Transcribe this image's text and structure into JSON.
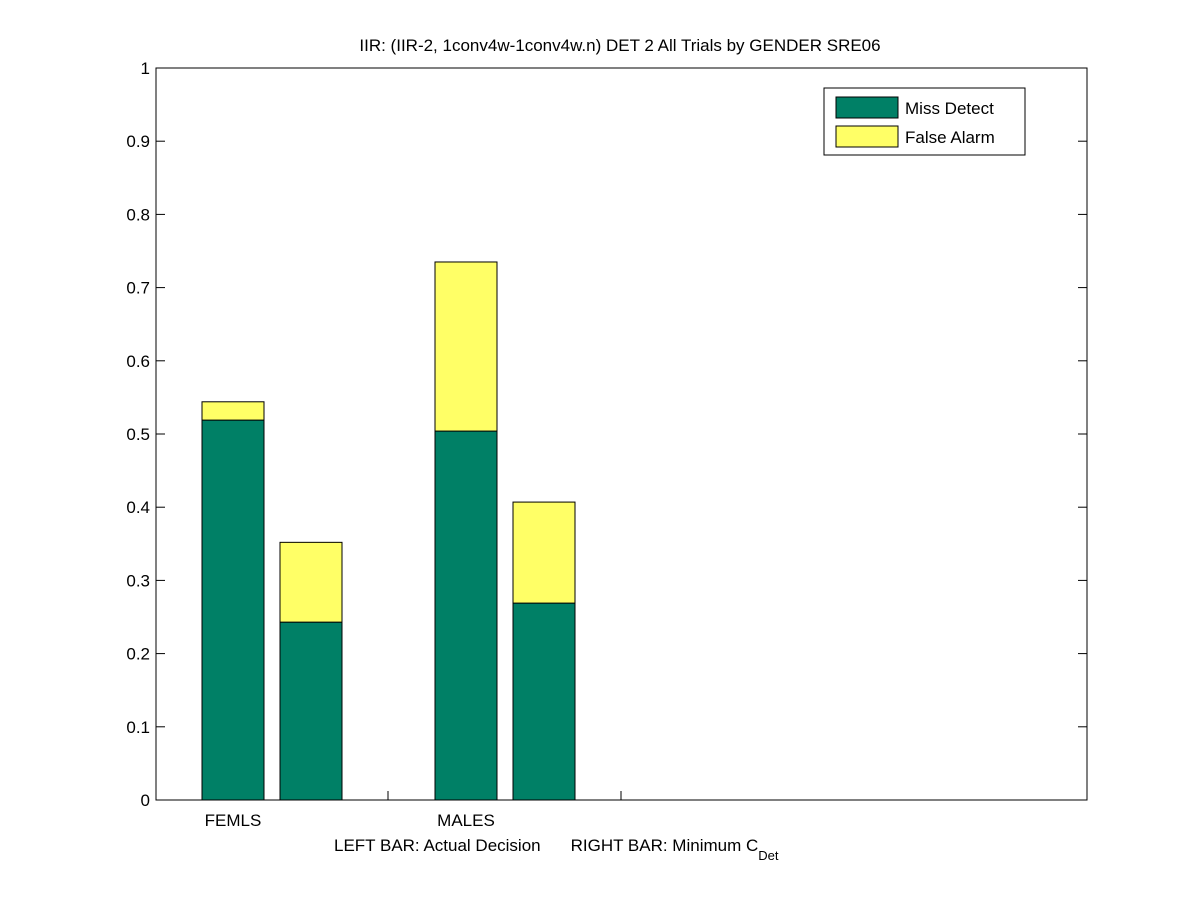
{
  "chart_data": {
    "type": "bar",
    "stacked": true,
    "title": "IIR: (IIR-2, 1conv4w-1conv4w.n) DET 2 All Trials by GENDER SRE06",
    "xlabel_parts": {
      "left": "LEFT BAR: Actual Decision",
      "right": "RIGHT BAR: Minimum C",
      "subscript": "Det"
    },
    "categories": [
      "FEMLS",
      "MALES"
    ],
    "bars_per_category": [
      "Actual Decision",
      "Minimum CDet"
    ],
    "series": [
      {
        "name": "Miss Detect",
        "color": "#008066",
        "values": [
          [
            0.519,
            0.243
          ],
          [
            0.504,
            0.269
          ]
        ]
      },
      {
        "name": "False Alarm",
        "color": "#ffff66",
        "values": [
          [
            0.025,
            0.109
          ],
          [
            0.231,
            0.138
          ]
        ]
      }
    ],
    "ylim": [
      0,
      1
    ],
    "yticks": [
      "0",
      "0.1",
      "0.2",
      "0.3",
      "0.4",
      "0.5",
      "0.6",
      "0.7",
      "0.8",
      "0.9",
      "1"
    ],
    "grid": false,
    "legend_position": "top-right"
  }
}
